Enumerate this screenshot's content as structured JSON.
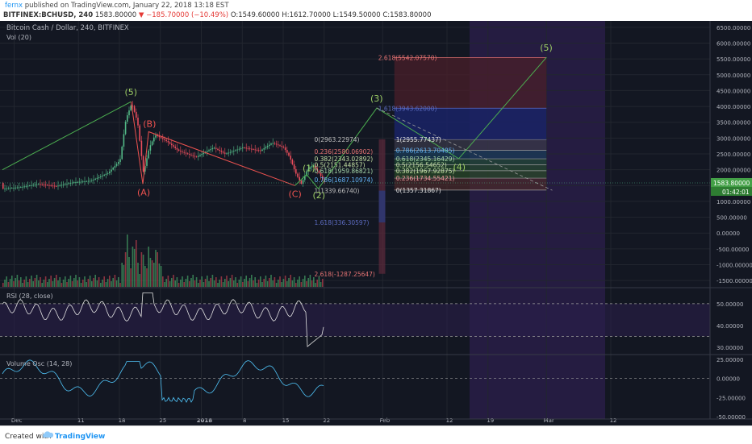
{
  "header": {
    "user": "fernx",
    "published": " published on TradingView.com, January 22, 2018 13:18 EST",
    "symbol": "BITFINEX:BCHUSD, 240",
    "last": "1583.80000",
    "change": "−185.70000 (−10.49%)",
    "ohlc": "O:1549.60000 H:1612.70000 L:1549.50000 C:1583.80000"
  },
  "footer": {
    "created": "Created with",
    "brand": "TradingView"
  },
  "colors": {
    "background": "#131722",
    "grid": "#22262f",
    "text": "#b2b5be",
    "up": "#53b987",
    "down": "#eb4d5c",
    "wave": "#4caf50",
    "wave_label": "#9ccc65",
    "abc": "#ef5350",
    "rsi_line": "#e0e0e0",
    "purple_zone": "#2a1e4a",
    "last_price_bg": "#43a047"
  },
  "chart_data": {
    "type": "candlestick",
    "title": "Bitcoin Cash / Dollar, 240, BITFINEX",
    "volume_label": "Vol (20)",
    "x_ticks": [
      "Dec",
      "11",
      "18",
      "25",
      "2018",
      "8",
      "15",
      "22",
      "Feb",
      "12",
      "19",
      "Mar",
      "12"
    ],
    "price_axis": {
      "ylim": [
        -1700,
        6700
      ],
      "ticks": [
        "6500.00000",
        "6000.00000",
        "5500.00000",
        "5000.00000",
        "4500.00000",
        "4000.00000",
        "3500.00000",
        "3000.00000",
        "2500.00000",
        "2000.00000",
        "1500.00000",
        "1000.00000",
        "500.00000",
        "0.00000",
        "-500.00000",
        "-1000.00000",
        "-1500.00000"
      ],
      "last_price": "1583.80000",
      "countdown": "01:42:01"
    },
    "price_path": [
      [
        "Nov 28",
        1400
      ],
      [
        "Dec 1",
        1450
      ],
      [
        "Dec 4",
        1550
      ],
      [
        "Dec 7",
        1480
      ],
      [
        "Dec 10",
        1600
      ],
      [
        "Dec 13",
        1650
      ],
      [
        "Dec 16",
        1900
      ],
      [
        "Dec 18",
        2300
      ],
      [
        "Dec 19",
        3600
      ],
      [
        "Dec 20",
        4100
      ],
      [
        "Dec 21",
        3500
      ],
      [
        "Dec 22",
        1900
      ],
      [
        "Dec 23",
        2700
      ],
      [
        "Dec 24",
        3100
      ],
      [
        "Dec 26",
        2900
      ],
      [
        "Dec 28",
        2600
      ],
      [
        "Dec 31",
        2400
      ],
      [
        "Jan 3",
        2700
      ],
      [
        "Jan 5",
        2500
      ],
      [
        "Jan 8",
        2700
      ],
      [
        "Jan 11",
        2600
      ],
      [
        "Jan 13",
        2850
      ],
      [
        "Jan 15",
        2700
      ],
      [
        "Jan 16",
        2400
      ],
      [
        "Jan 17",
        1900
      ],
      [
        "Jan 18",
        1550
      ],
      [
        "Jan 19",
        2000
      ],
      [
        "Jan 20",
        2150
      ],
      [
        "Jan 21",
        1900
      ],
      [
        "Jan 22",
        1583.8
      ]
    ],
    "wave_counts": [
      {
        "label": "(5)",
        "date": "Dec 20",
        "price": 4150
      },
      {
        "label": "(A)",
        "date": "Dec 22",
        "price": 1550
      },
      {
        "label": "(B)",
        "date": "Dec 23",
        "price": 3200
      },
      {
        "label": "(C)",
        "date": "Jan 17",
        "price": 1500
      },
      {
        "label": "(1)",
        "date": "Jan 19",
        "price": 1850
      },
      {
        "label": "(2)",
        "date": "Jan 21",
        "price": 1400
      },
      {
        "label": "(3)",
        "date": "Jan 31",
        "price": 3950
      },
      {
        "label": "(4)",
        "date": "Feb 14",
        "price": 2350
      },
      {
        "label": "(5)",
        "date": "Mar 1",
        "price": 5550
      }
    ],
    "fib_retracement": [
      {
        "label": "1(2955.77437)",
        "price": 2955.77
      },
      {
        "label": "0.786(2613.70485)",
        "price": 2613.7
      },
      {
        "label": "0.618(2345.16429)",
        "price": 2345.16
      },
      {
        "label": "0.5(2156.54652)",
        "price": 2156.55
      },
      {
        "label": "0.382(1967.92875)",
        "price": 1967.93
      },
      {
        "label": "0.236(1734.55421)",
        "price": 1734.55
      },
      {
        "label": "0(1357.31867)",
        "price": 1357.32
      }
    ],
    "fib_extension": [
      {
        "label": "2.618(5542.07570)",
        "price": 5542.08
      },
      {
        "label": "1.618(3943.62000)",
        "price": 3943.62
      }
    ],
    "fib_small": [
      {
        "label": "0(2963.22974)",
        "price": 2963.23
      },
      {
        "label": "0.236(2580.06902)",
        "price": 2580.07
      },
      {
        "label": "0.382(2343.02892)",
        "price": 2343.03
      },
      {
        "label": "0.5(2151.44857)",
        "price": 2151.45
      },
      {
        "label": "0.618(1959.86821)",
        "price": 1959.87
      },
      {
        "label": "0.786(1687.10974)",
        "price": 1687.11
      },
      {
        "label": "1(1339.66740)",
        "price": 1339.67
      },
      {
        "label": "1.618(336.30597)",
        "price": 336.31
      },
      {
        "label": "2.618(-1287.25647)",
        "price": -1287.26
      }
    ],
    "rsi": {
      "label": "RSI (28, close)",
      "ylim": [
        27,
        57
      ],
      "ticks": [
        "50.00000",
        "40.00000",
        "30.00000"
      ],
      "upper": 50,
      "lower": 35
    },
    "volume_osc": {
      "label": "Volume Osc (14, 28)",
      "ylim": [
        -53,
        30
      ],
      "ticks": [
        "25.00000",
        "0.00000",
        "-25.00000",
        "-50.00000"
      ]
    }
  }
}
